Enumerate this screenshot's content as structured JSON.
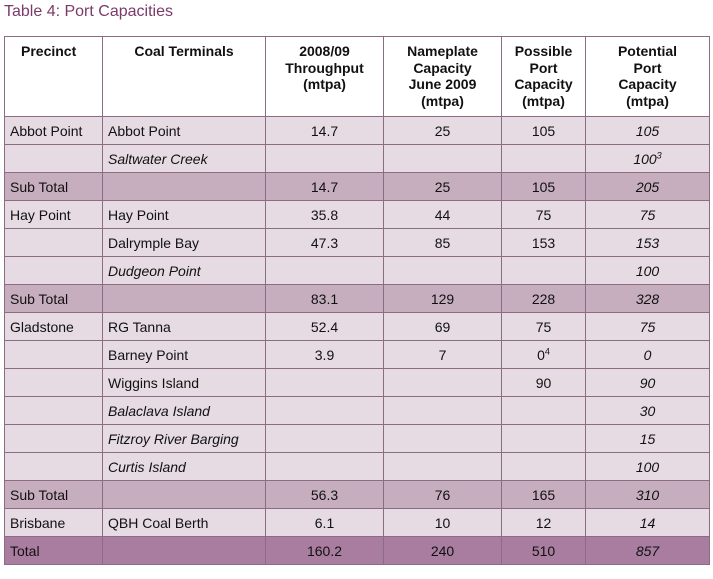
{
  "caption": "Table 4: Port Capacities",
  "headers": [
    [
      "Precinct"
    ],
    [
      "Coal Terminals"
    ],
    [
      "2008/09",
      "Throughput",
      "(mtpa)"
    ],
    [
      "Nameplate",
      "Capacity",
      "June 2009",
      "(mtpa)"
    ],
    [
      "Possible",
      "Port",
      "Capacity",
      "(mtpa)"
    ],
    [
      "Potential",
      "Port",
      "Capacity",
      "(mtpa)"
    ]
  ],
  "rows": [
    {
      "type": "row",
      "precinct": "Abbot Point",
      "terminal": "Abbot Point",
      "terminal_italic": false,
      "throughput": "14.7",
      "nameplate": "25",
      "possible": "105",
      "possible_sup": "",
      "potential": "105",
      "potential_sup": ""
    },
    {
      "type": "row",
      "precinct": "",
      "terminal": "Saltwater Creek",
      "terminal_italic": true,
      "throughput": "",
      "nameplate": "",
      "possible": "",
      "possible_sup": "",
      "potential": "100",
      "potential_sup": "3"
    },
    {
      "type": "sub",
      "precinct": "Sub Total",
      "terminal": "",
      "terminal_italic": false,
      "throughput": "14.7",
      "nameplate": "25",
      "possible": "105",
      "possible_sup": "",
      "potential": "205",
      "potential_sup": ""
    },
    {
      "type": "row",
      "precinct": "Hay Point",
      "terminal": "Hay Point",
      "terminal_italic": false,
      "throughput": "35.8",
      "nameplate": "44",
      "possible": "75",
      "possible_sup": "",
      "potential": "75",
      "potential_sup": ""
    },
    {
      "type": "row",
      "precinct": "",
      "terminal": "Dalrymple Bay",
      "terminal_italic": false,
      "throughput": "47.3",
      "nameplate": "85",
      "possible": "153",
      "possible_sup": "",
      "potential": "153",
      "potential_sup": ""
    },
    {
      "type": "row",
      "precinct": "",
      "terminal": "Dudgeon Point",
      "terminal_italic": true,
      "throughput": "",
      "nameplate": "",
      "possible": "",
      "possible_sup": "",
      "potential": "100",
      "potential_sup": ""
    },
    {
      "type": "sub",
      "precinct": "Sub Total",
      "terminal": "",
      "terminal_italic": false,
      "throughput": "83.1",
      "nameplate": "129",
      "possible": "228",
      "possible_sup": "",
      "potential": "328",
      "potential_sup": ""
    },
    {
      "type": "row",
      "precinct": "Gladstone",
      "terminal": "RG Tanna",
      "terminal_italic": false,
      "throughput": "52.4",
      "nameplate": "69",
      "possible": "75",
      "possible_sup": "",
      "potential": "75",
      "potential_sup": ""
    },
    {
      "type": "row",
      "precinct": "",
      "terminal": "Barney Point",
      "terminal_italic": false,
      "throughput": "3.9",
      "nameplate": "7",
      "possible": "0",
      "possible_sup": "4",
      "potential": "0",
      "potential_sup": ""
    },
    {
      "type": "row",
      "precinct": "",
      "terminal": "Wiggins Island",
      "terminal_italic": false,
      "throughput": "",
      "nameplate": "",
      "possible": "90",
      "possible_sup": "",
      "potential": "90",
      "potential_sup": ""
    },
    {
      "type": "row",
      "precinct": "",
      "terminal": "Balaclava Island",
      "terminal_italic": true,
      "throughput": "",
      "nameplate": "",
      "possible": "",
      "possible_sup": "",
      "potential": "30",
      "potential_sup": ""
    },
    {
      "type": "row",
      "precinct": "",
      "terminal": "Fitzroy River Barging",
      "terminal_italic": true,
      "throughput": "",
      "nameplate": "",
      "possible": "",
      "possible_sup": "",
      "potential": "15",
      "potential_sup": ""
    },
    {
      "type": "row",
      "precinct": "",
      "terminal": "Curtis Island",
      "terminal_italic": true,
      "throughput": "",
      "nameplate": "",
      "possible": "",
      "possible_sup": "",
      "potential": "100",
      "potential_sup": ""
    },
    {
      "type": "sub",
      "precinct": "Sub Total",
      "terminal": "",
      "terminal_italic": false,
      "throughput": "56.3",
      "nameplate": "76",
      "possible": "165",
      "possible_sup": "",
      "potential": "310",
      "potential_sup": ""
    },
    {
      "type": "row",
      "precinct": "Brisbane",
      "terminal": "QBH Coal Berth",
      "terminal_italic": false,
      "throughput": "6.1",
      "nameplate": "10",
      "possible": "12",
      "possible_sup": "",
      "potential": "14",
      "potential_sup": ""
    },
    {
      "type": "total",
      "precinct": "Total",
      "terminal": "",
      "terminal_italic": false,
      "throughput": "160.2",
      "nameplate": "240",
      "possible": "510",
      "possible_sup": "",
      "potential": "857",
      "potential_sup": ""
    }
  ],
  "colors": {
    "caption": "#7a3a6a",
    "row": "#e6dbe3",
    "subtotal": "#c7aebf",
    "total": "#a97da0",
    "border": "#8a6d82"
  }
}
